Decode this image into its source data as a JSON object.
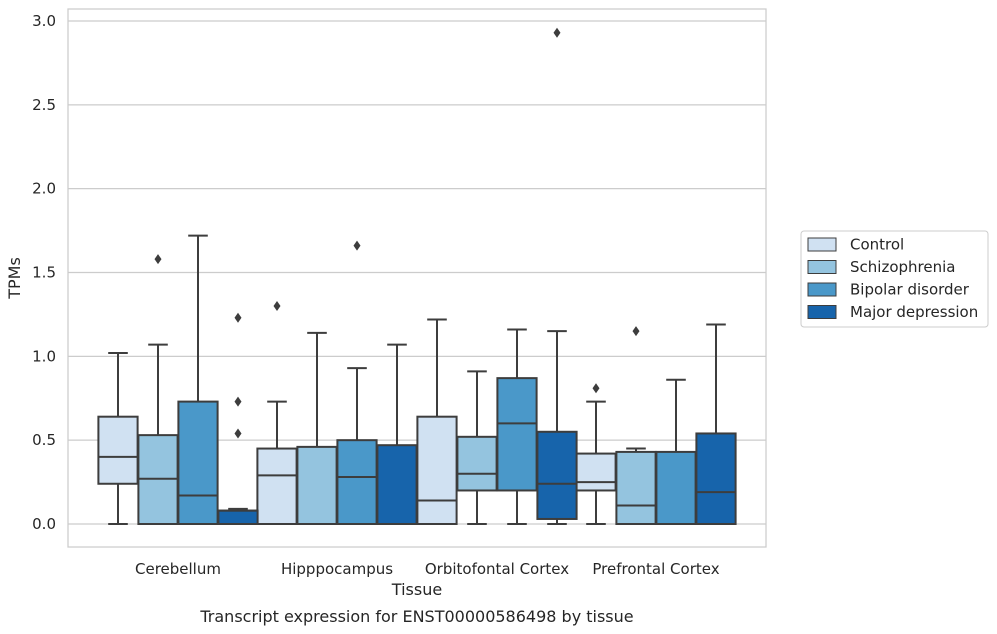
{
  "chart_data": {
    "type": "box",
    "caption": "Transcript expression for ENST00000586498 by tissue",
    "xlabel": "Tissue",
    "ylabel": "TPMs",
    "ylim": [
      -0.14,
      3.07
    ],
    "yticks": [
      0.0,
      0.5,
      1.0,
      1.5,
      2.0,
      2.5,
      3.0
    ],
    "grid": "horizontal",
    "legend_position": "outside right",
    "categories": [
      "Cerebellum",
      "Hipppocampus",
      "Orbitofontal Cortex",
      "Prefrontal Cortex"
    ],
    "series": [
      {
        "name": "Control",
        "color": "#d0e1f2",
        "boxes": [
          {
            "whislo": 0.0,
            "q1": 0.24,
            "med": 0.4,
            "q3": 0.64,
            "whishi": 1.02,
            "fliers": []
          },
          {
            "whislo": 0.0,
            "q1": 0.0,
            "med": 0.29,
            "q3": 0.45,
            "whishi": 0.73,
            "fliers": [
              1.3
            ]
          },
          {
            "whislo": 0.0,
            "q1": 0.0,
            "med": 0.14,
            "q3": 0.64,
            "whishi": 1.22,
            "fliers": []
          },
          {
            "whislo": 0.0,
            "q1": 0.2,
            "med": 0.25,
            "q3": 0.42,
            "whishi": 0.73,
            "fliers": [
              0.81
            ]
          }
        ]
      },
      {
        "name": "Schizophrenia",
        "color": "#94c4df",
        "boxes": [
          {
            "whislo": 0.0,
            "q1": 0.0,
            "med": 0.27,
            "q3": 0.53,
            "whishi": 1.07,
            "fliers": [
              1.58
            ]
          },
          {
            "whislo": 0.0,
            "q1": 0.0,
            "med": 0.0,
            "q3": 0.46,
            "whishi": 1.14,
            "fliers": []
          },
          {
            "whislo": 0.0,
            "q1": 0.2,
            "med": 0.3,
            "q3": 0.52,
            "whishi": 0.91,
            "fliers": []
          },
          {
            "whislo": 0.0,
            "q1": 0.0,
            "med": 0.11,
            "q3": 0.43,
            "whishi": 0.45,
            "fliers": [
              1.15
            ]
          }
        ]
      },
      {
        "name": "Bipolar disorder",
        "color": "#4a98c9",
        "boxes": [
          {
            "whislo": 0.0,
            "q1": 0.0,
            "med": 0.17,
            "q3": 0.73,
            "whishi": 1.72,
            "fliers": []
          },
          {
            "whislo": 0.0,
            "q1": 0.0,
            "med": 0.28,
            "q3": 0.5,
            "whishi": 0.93,
            "fliers": [
              1.66
            ]
          },
          {
            "whislo": 0.0,
            "q1": 0.2,
            "med": 0.6,
            "q3": 0.87,
            "whishi": 1.16,
            "fliers": []
          },
          {
            "whislo": 0.0,
            "q1": 0.0,
            "med": 0.0,
            "q3": 0.43,
            "whishi": 0.86,
            "fliers": []
          }
        ]
      },
      {
        "name": "Major depression",
        "color": "#1764ab",
        "boxes": [
          {
            "whislo": 0.0,
            "q1": 0.0,
            "med": 0.08,
            "q3": 0.08,
            "whishi": 0.09,
            "fliers": [
              0.54,
              0.73,
              1.23
            ]
          },
          {
            "whislo": 0.0,
            "q1": 0.0,
            "med": 0.0,
            "q3": 0.47,
            "whishi": 1.07,
            "fliers": []
          },
          {
            "whislo": 0.0,
            "q1": 0.03,
            "med": 0.24,
            "q3": 0.55,
            "whishi": 1.15,
            "fliers": [
              2.93
            ]
          },
          {
            "whislo": 0.0,
            "q1": 0.0,
            "med": 0.19,
            "q3": 0.54,
            "whishi": 1.19,
            "fliers": []
          }
        ]
      }
    ]
  }
}
